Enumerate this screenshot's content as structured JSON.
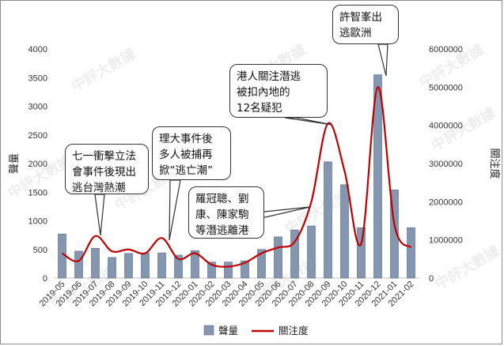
{
  "chart_data": {
    "type": "bar+line",
    "categories": [
      "2019-05",
      "2019-06",
      "2019-07",
      "2019-08",
      "2019-09",
      "2019-10",
      "2019-11",
      "2019-12",
      "2020-01",
      "2020-02",
      "2020-03",
      "2020-04",
      "2020-05",
      "2020-06",
      "2020-07",
      "2020-08",
      "2020-09",
      "2020-10",
      "2020-11",
      "2020-12",
      "2021-01",
      "2021-02"
    ],
    "series": [
      {
        "name": "聲量",
        "type": "bar",
        "axis": "left",
        "color": "#8496b0",
        "values": [
          770,
          470,
          520,
          360,
          430,
          440,
          440,
          400,
          480,
          280,
          280,
          300,
          500,
          720,
          840,
          910,
          2030,
          1630,
          880,
          3550,
          1540,
          880
        ]
      },
      {
        "name": "關注度",
        "type": "line",
        "axis": "right",
        "color": "#c00000",
        "values": [
          650000,
          450000,
          1100000,
          700000,
          750000,
          650000,
          1050000,
          500000,
          650000,
          350000,
          300000,
          400000,
          650000,
          800000,
          950000,
          2000000,
          4050000,
          2800000,
          900000,
          5000000,
          1400000,
          800000
        ]
      }
    ],
    "ylabel_left": "聲量",
    "ylabel_right": "關注度",
    "ylim_left": [
      0,
      4000
    ],
    "ylim_right": [
      0,
      6000000
    ],
    "yticks_left": [
      "0",
      "500",
      "1000",
      "1500",
      "2000",
      "2500",
      "3000",
      "3500",
      "4000"
    ],
    "yticks_right": [
      "0",
      "1000000",
      "2000000",
      "3000000",
      "4000000",
      "5000000",
      "6000000"
    ],
    "legend": "bottom-center",
    "grid": false
  },
  "annotations": [
    {
      "text": "七一衝擊立法\n會事件後現出\n逃台灣熱潮"
    },
    {
      "text": "理大事件後\n多人被捕再\n掀“逃亡潮”"
    },
    {
      "text": "羅冠聰、劉\n康、陳家駒\n等潛逃離港"
    },
    {
      "text": "港人關注潛逃\n被扣內地的\n12名疑犯"
    },
    {
      "text": "許智峯出\n逃歐洲"
    }
  ],
  "watermark": "中評大數據"
}
